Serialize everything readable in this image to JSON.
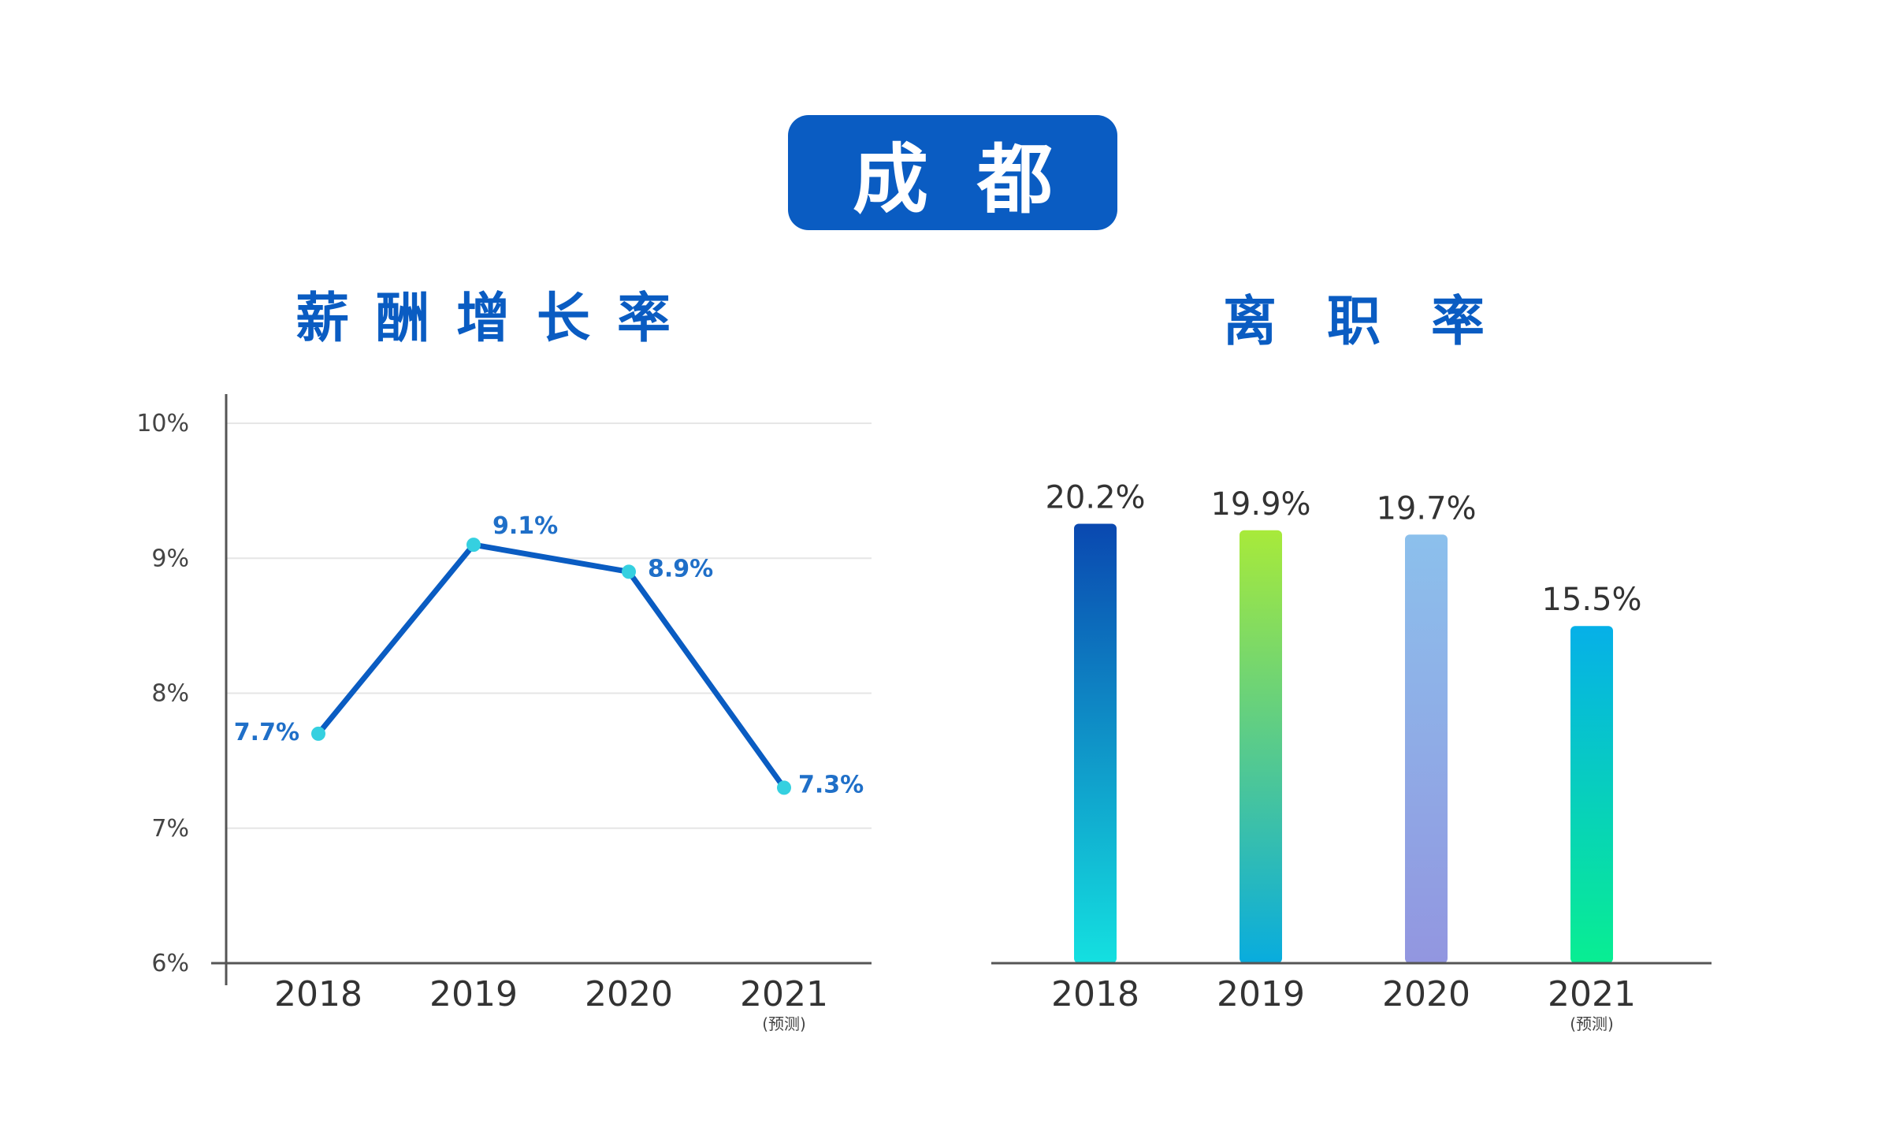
{
  "city": "成都",
  "chart_data": [
    {
      "type": "line",
      "title": "薪酬增长率",
      "categories": [
        "2018",
        "2019",
        "2020",
        "2021"
      ],
      "category_notes": [
        "",
        "",
        "",
        "(预测)"
      ],
      "values": [
        7.7,
        9.1,
        8.9,
        7.3
      ],
      "data_labels": [
        "7.7%",
        "9.1%",
        "8.9%",
        "7.3%"
      ],
      "y_ticks": [
        "6%",
        "7%",
        "8%",
        "9%",
        "10%"
      ],
      "ylim": [
        6,
        10
      ],
      "grid": true,
      "colors": {
        "line": "#0a5cc2",
        "point": "#35d0e0",
        "label": "#1f6fc8"
      }
    },
    {
      "type": "bar",
      "title": "离职率",
      "categories": [
        "2018",
        "2019",
        "2020",
        "2021"
      ],
      "category_notes": [
        "",
        "",
        "",
        "(预测)"
      ],
      "values": [
        20.2,
        19.9,
        19.7,
        15.5
      ],
      "data_labels": [
        "20.2%",
        "19.9%",
        "19.7%",
        "15.5%"
      ],
      "grid": false,
      "colors": {
        "gradients": [
          [
            "#0a48b0",
            "#14e0e0"
          ],
          [
            "#a8ea3a",
            "#08acde"
          ],
          [
            "#8cc0ec",
            "#9296e0"
          ],
          [
            "#06b0e8",
            "#08ee92"
          ]
        ]
      }
    }
  ]
}
